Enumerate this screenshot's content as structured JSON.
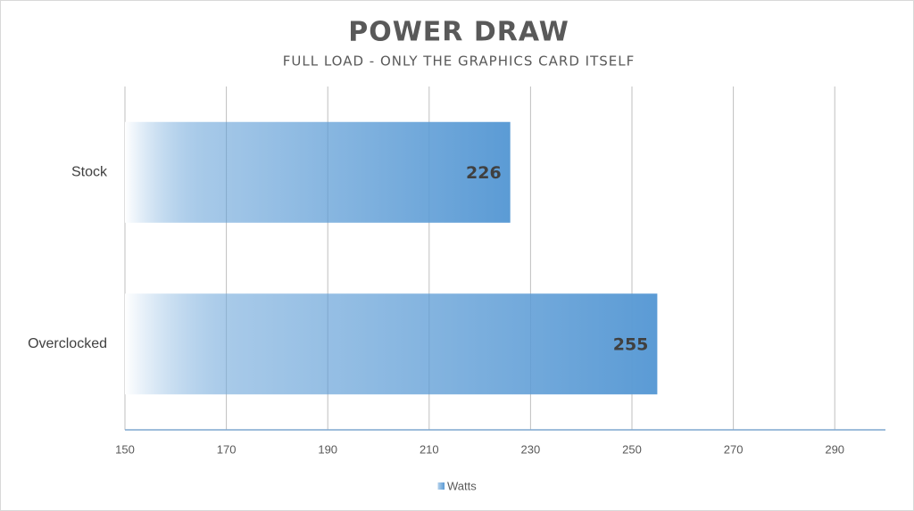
{
  "chart_data": {
    "type": "bar",
    "orientation": "horizontal",
    "title": "POWER DRAW",
    "subtitle": "FULL LOAD - ONLY THE GRAPHICS CARD ITSELF",
    "categories": [
      "Stock",
      "Overclocked"
    ],
    "series": [
      {
        "name": "Watts",
        "color": "#5b9bd5",
        "values": [
          226,
          255
        ]
      }
    ],
    "xlim": [
      150,
      300
    ],
    "xticks": [
      150,
      170,
      190,
      210,
      230,
      250,
      270,
      290
    ],
    "grid": true,
    "legend": "bottom"
  }
}
